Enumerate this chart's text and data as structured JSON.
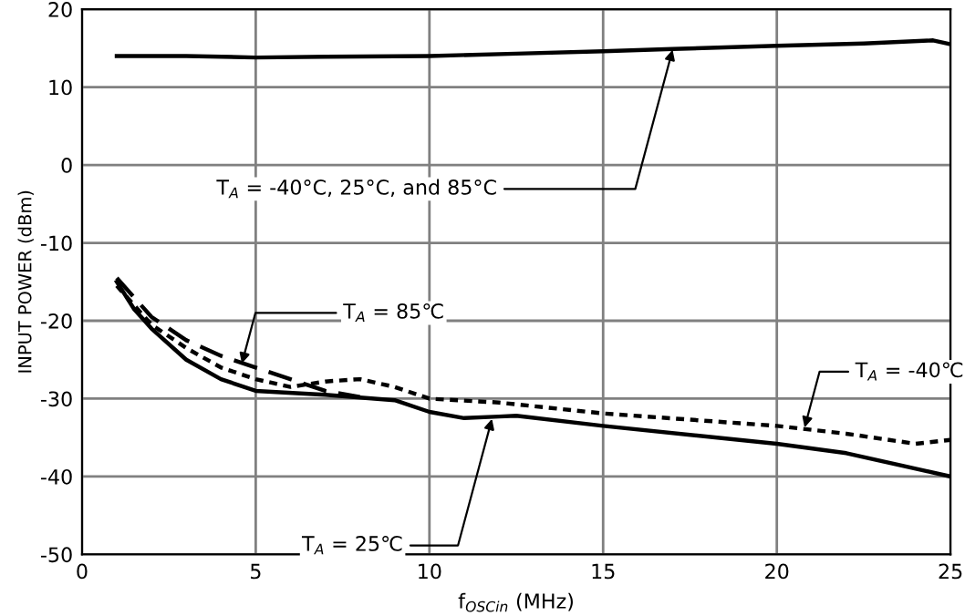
{
  "chart_data": {
    "type": "line",
    "xlabel": "f$_{OSCin}$ (MHz)",
    "ylabel": "INPUT POWER (dBm)",
    "xlim": [
      0,
      25
    ],
    "ylim": [
      -50,
      20
    ],
    "xticks": [
      0,
      5,
      10,
      15,
      20,
      25
    ],
    "yticks": [
      -50,
      -40,
      -30,
      -20,
      -10,
      0,
      10,
      20
    ],
    "grid": true,
    "marker": "none",
    "series": [
      {
        "color": "#000000",
        "line_style": "solid",
        "x": [
          1,
          3,
          5,
          7,
          10,
          12.5,
          15,
          17,
          20,
          22.5,
          24.5,
          25
        ],
        "values": [
          14,
          14,
          13.8,
          13.9,
          14,
          14.3,
          14.6,
          14.9,
          15.3,
          15.6,
          16,
          15.5
        ]
      },
      {
        "color": "#000000",
        "line_style": "solid",
        "x": [
          1,
          1.5,
          2,
          3,
          4,
          5,
          7,
          9,
          10,
          11,
          12,
          12.5,
          15,
          20,
          22,
          24,
          25
        ],
        "values": [
          -15,
          -18.5,
          -21,
          -25,
          -27.5,
          -29,
          -29.5,
          -30.2,
          -31.7,
          -32.5,
          -32.3,
          -32.2,
          -33.5,
          -35.8,
          -37,
          -39,
          -40
        ]
      },
      {
        "color": "#000000",
        "line_style": "dashed",
        "x": [
          1,
          2,
          3,
          4,
          5,
          6,
          7,
          8
        ],
        "values": [
          -14.5,
          -19.5,
          -22.5,
          -24.5,
          -26,
          -27.5,
          -29,
          -29.8
        ]
      },
      {
        "color": "#000000",
        "line_style": "dotted",
        "x": [
          1,
          2,
          3,
          4,
          5,
          6,
          7,
          8,
          9,
          10,
          12,
          15,
          20,
          22,
          24,
          25
        ],
        "values": [
          -15.5,
          -20.5,
          -23.5,
          -26,
          -27.5,
          -28.5,
          -27.8,
          -27.5,
          -28.5,
          -30,
          -30.5,
          -31.9,
          -33.5,
          -34.5,
          -35.8,
          -35.3
        ]
      }
    ],
    "annotations": [
      {
        "text": "T$_{A}$ = -40°C, 25°C, and 85°C",
        "x": 17,
        "y": 14.8
      },
      {
        "text": "T$_{A}$ = 85℃",
        "x": 4.6,
        "y": -25.5
      },
      {
        "text": "T$_{A}$ = 25℃",
        "x": 11.8,
        "y": -32.6
      },
      {
        "text": "T$_{A}$ = -40℃",
        "x": 20.8,
        "y": -33.7
      }
    ]
  }
}
